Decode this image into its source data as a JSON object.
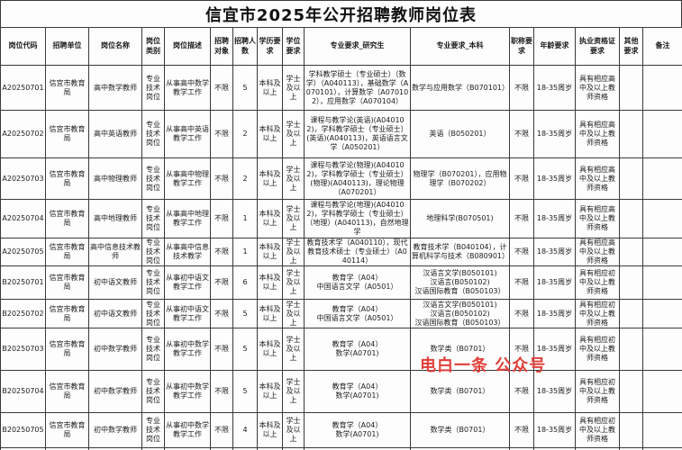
{
  "title": "信宜市2025年公开招聘教师岗位表",
  "watermark": {
    "text": "电白一条 公众号",
    "color": "#e0403a"
  },
  "table": {
    "columns": [
      "岗位代码",
      "招聘单位",
      "岗位名称",
      "岗位类别",
      "岗位描述",
      "招聘对象",
      "招聘人数",
      "学历要求",
      "学位要求",
      "专业要求_研究生",
      "专业要求_本科",
      "职称要求",
      "年龄要求",
      "执业资格证要求",
      "其他要求",
      "备注"
    ],
    "rows": [
      {
        "cells": [
          "A20250701",
          "信宜市教育局",
          "高中数学教师",
          "专业技术岗位",
          "从事高中数学教学工作",
          "不限",
          "5",
          "本科及以上",
          "学士及以上",
          "学科教学硕士（专业硕士）（数学）（A040113），基础数学（A070101），计算数学（A070102），应用数学（A070104）",
          "数学与应用数学（B070101）",
          "不限",
          "18-35周岁",
          "具有相应高中及以上教师资格",
          "",
          ""
        ]
      },
      {
        "cells": [
          "A20250702",
          "信宜市教育局",
          "高中英语教师",
          "专业技术岗位",
          "从事高中英语教学工作",
          "不限",
          "2",
          "本科及以上",
          "学士及以上",
          "课程与教学论(英语)(A040102)，学科教学硕士（专业硕士）(英语)(A040113)，英语语言文学（A050201）",
          "英语（B050201）",
          "不限",
          "18-35周岁",
          "具有相应高中及以上教师资格",
          "",
          ""
        ]
      },
      {
        "cells": [
          "A20250703",
          "信宜市教育局",
          "高中物理教师",
          "专业技术岗位",
          "从事高中物理教学工作",
          "不限",
          "2",
          "本科及以上",
          "学士及以上",
          "课程与教学论(物理)(A040102)，学科教学硕士（专业硕士）(物理)(A040113)，理论物理（A070201）",
          "物理学（B070201），应用物理学（B070202）",
          "不限",
          "18-35周岁",
          "具有相应高中及以上教师资格",
          "",
          ""
        ]
      },
      {
        "cells": [
          "A20250704",
          "信宜市教育局",
          "高中地理教师",
          "专业技术岗位",
          "从事高中地理教学工作",
          "不限",
          "1",
          "本科及以上",
          "学士及以上",
          "课程与教学论(地理)(A040102)，学科教学硕士（专业硕士）（地理）(A040113)，自然地理学",
          "地理科学(B070501)",
          "不限",
          "18-35周岁",
          "具有相应高中及以上教师资格",
          "",
          ""
        ]
      },
      {
        "cells": [
          "A20250705",
          "信宜市教育局",
          "高中信息技术教师",
          "专业技术岗位",
          "从事高中信息技术教学",
          "不限",
          "1",
          "本科及以上",
          "学士及以上",
          "教育技术学（A040110），现代教育技术硕士（专业硕士）（A040114）",
          "教育技术学（B040104），计算机科学与技术（B080901）",
          "不限",
          "18-35周岁",
          "具有相应高中及以上教师资格",
          "",
          ""
        ]
      },
      {
        "cells": [
          "B20250701",
          "信宜市教育局",
          "初中语文教师",
          "专业技术岗位",
          "从事初中语文教学工作",
          "不限",
          "6",
          "本科及以上",
          "学士及以上",
          "教育学（A04）\n中国语言文学（A0501）",
          "汉语言文学(B050101)\n汉语言(B050102)\n汉语国际教育（B050103）",
          "不限",
          "18-35周岁",
          "具有相应初中及以上教师资格",
          "",
          ""
        ]
      },
      {
        "cells": [
          "B20250702",
          "信宜市教育局",
          "初中语文教师",
          "专业技术岗位",
          "从事初中语文教学工作",
          "不限",
          "5",
          "本科及以上",
          "学士及以上",
          "教育学（A04）\n中国语言文学（A0501）",
          "汉语言文学(B050101)\n汉语言(B050102)\n汉语国际教育（B050103）",
          "不限",
          "18-35周岁",
          "具有相应初中及以上教师资格",
          "",
          ""
        ]
      },
      {
        "cells": [
          "B20250703",
          "信宜市教育局",
          "初中数学教师",
          "专业技术岗位",
          "从事初中数学教学工作",
          "不限",
          "5",
          "本科及以上",
          "学士及以上",
          "教育学（A04）\n数学(A0701)",
          "数学类（B0701）",
          "不限",
          "18-35周岁",
          "具有相应初中及以上教师资格",
          "",
          ""
        ]
      },
      {
        "cells": [
          "B20250704",
          "信宜市教育局",
          "初中数学教师",
          "专业技术岗位",
          "从事初中数学教学工作",
          "不限",
          "5",
          "本科及以上",
          "学士及以上",
          "教育学（A04）\n数学(A0701)",
          "数学类（B0701）",
          "不限",
          "18-35周岁",
          "具有相应初中及以上教师资格",
          "",
          ""
        ]
      },
      {
        "cells": [
          "B20250705",
          "信宜市教育局",
          "初中数学教师",
          "专业技术岗位",
          "从事初中数学教学工作",
          "不限",
          "4",
          "本科及以上",
          "学士及以上",
          "教育学（A04）\n数学(A0701)",
          "数学类（B0701）",
          "不限",
          "18-35周岁",
          "具有相应初中及以上教师资格",
          "",
          ""
        ]
      }
    ]
  }
}
